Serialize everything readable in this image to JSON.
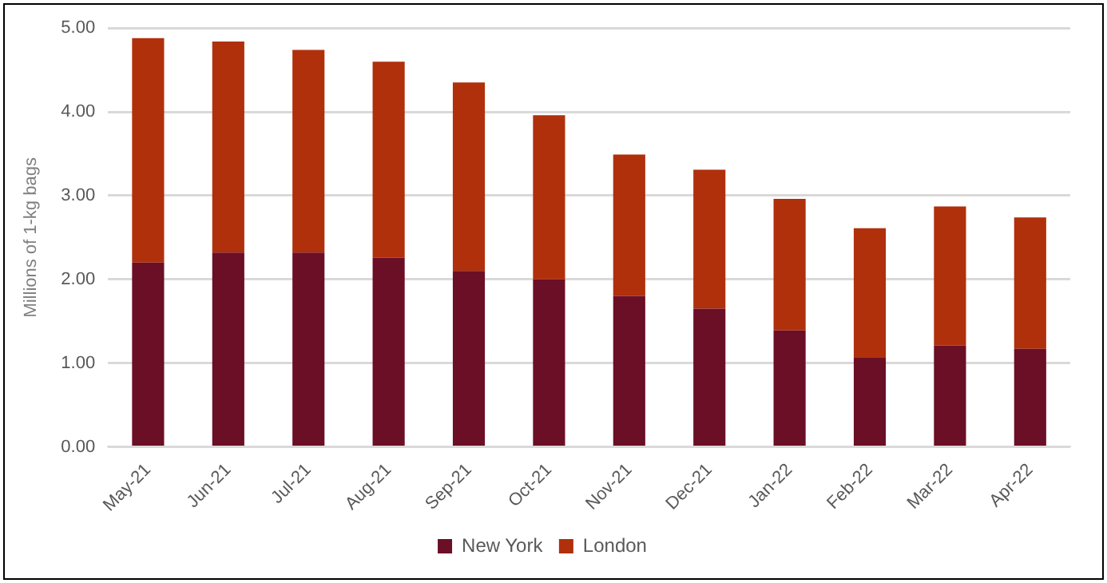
{
  "chart_data": {
    "type": "bar",
    "stacked": true,
    "ylabel": "Millions of 1-kg bags",
    "categories": [
      "May-21",
      "Jun-21",
      "Jul-21",
      "Aug-21",
      "Sep-21",
      "Oct-21",
      "Nov-21",
      "Dec-21",
      "Jan-22",
      "Feb-22",
      "Mar-22",
      "Apr-22"
    ],
    "series": [
      {
        "name": "New York",
        "color": "#6b0f26",
        "values": [
          2.2,
          2.32,
          2.32,
          2.26,
          2.1,
          2.0,
          1.8,
          1.65,
          1.39,
          1.07,
          1.21,
          1.17
        ]
      },
      {
        "name": "London",
        "color": "#b0300c",
        "values": [
          2.68,
          2.52,
          2.42,
          2.34,
          2.25,
          1.96,
          1.69,
          1.66,
          1.57,
          1.54,
          1.66,
          1.57
        ]
      }
    ],
    "ylim": [
      0,
      5
    ],
    "yticks": [
      {
        "value": 0,
        "label": "0.00"
      },
      {
        "value": 1,
        "label": "1.00"
      },
      {
        "value": 2,
        "label": "2.00"
      },
      {
        "value": 3,
        "label": "3.00"
      },
      {
        "value": 4,
        "label": "4.00"
      },
      {
        "value": 5,
        "label": "5.00"
      }
    ],
    "grid": "y",
    "legend": "bottom"
  }
}
